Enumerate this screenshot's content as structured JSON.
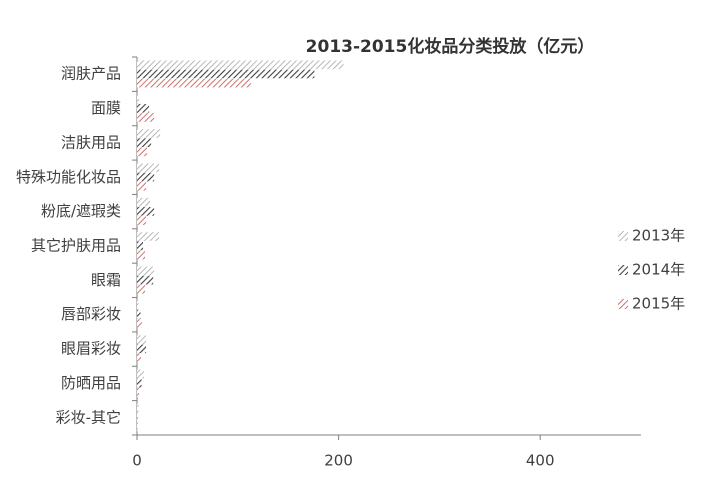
{
  "chart_data": {
    "type": "bar",
    "orientation": "horizontal",
    "title": "2013-2015化妆品分类投放（亿元）",
    "categories": [
      "润肤产品",
      "面膜",
      "洁肤用品",
      "特殊功能化妆品",
      "粉底/遮瑕类",
      "其它护肤用品",
      "眼霜",
      "唇部彩妆",
      "眼眉彩妆",
      "防晒用品",
      "彩妆-其它"
    ],
    "series": [
      {
        "name": "2013年",
        "color": "#a6a6a6",
        "values": [
          205,
          2,
          23,
          22,
          13,
          22,
          17,
          1.5,
          9,
          7,
          1.5
        ]
      },
      {
        "name": "2014年",
        "color": "#404040",
        "values": [
          176,
          12,
          14,
          17,
          17,
          6,
          16,
          3.5,
          9,
          4.5,
          0.5
        ]
      },
      {
        "name": "2015年",
        "color": "#c0504d",
        "values": [
          113,
          17,
          10,
          9,
          9,
          8,
          8,
          5,
          4,
          2,
          0.5
        ]
      }
    ],
    "xlim": [
      0,
      500
    ],
    "xticks": [
      0,
      200,
      400
    ],
    "legend": "right",
    "pattern": "hatch"
  }
}
